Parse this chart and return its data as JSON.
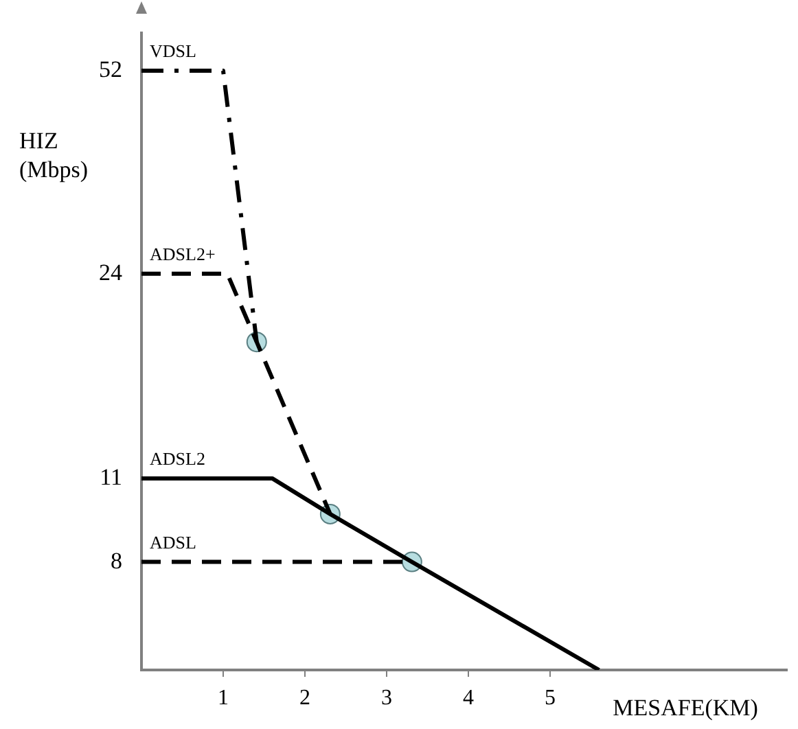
{
  "chart_data": {
    "type": "line",
    "xlabel": "MESAFE(KM)",
    "ylabel": "HIZ\n(Mbps)",
    "xlim": [
      0,
      7.9
    ],
    "xticks": [
      1,
      2,
      3,
      4,
      5
    ],
    "ylim": [
      5.3,
      60
    ],
    "yticks": [
      8,
      11,
      24,
      52
    ],
    "log": "y",
    "grid": false,
    "legend": false,
    "marker": "none",
    "series": [
      {
        "name": "VDSL",
        "color": "#000000",
        "line_style": "dashdot",
        "x": [
          0,
          1.0,
          1.41
        ],
        "values": [
          52,
          52,
          18.5
        ]
      },
      {
        "name": "ADSL2+",
        "color": "#000000",
        "line_style": "dashed",
        "x": [
          0,
          1.05,
          1.41,
          2.31
        ],
        "values": [
          24,
          24,
          18.5,
          9.6
        ]
      },
      {
        "name": "ADSL2",
        "color": "#000000",
        "line_style": "solid",
        "x": [
          0,
          1.6,
          2.31,
          3.31,
          5.6
        ],
        "values": [
          11,
          11,
          9.6,
          8,
          5.3
        ]
      },
      {
        "name": "ADSL",
        "color": "#000000",
        "line_style": "dashed",
        "x": [
          0,
          3.31
        ],
        "values": [
          8,
          8
        ]
      },
      {
        "type": "scatter",
        "color": "#b7dde0",
        "marker": "circle",
        "x": [
          1.41,
          2.31,
          3.31
        ],
        "values": [
          18.5,
          9.6,
          8
        ]
      }
    ]
  }
}
